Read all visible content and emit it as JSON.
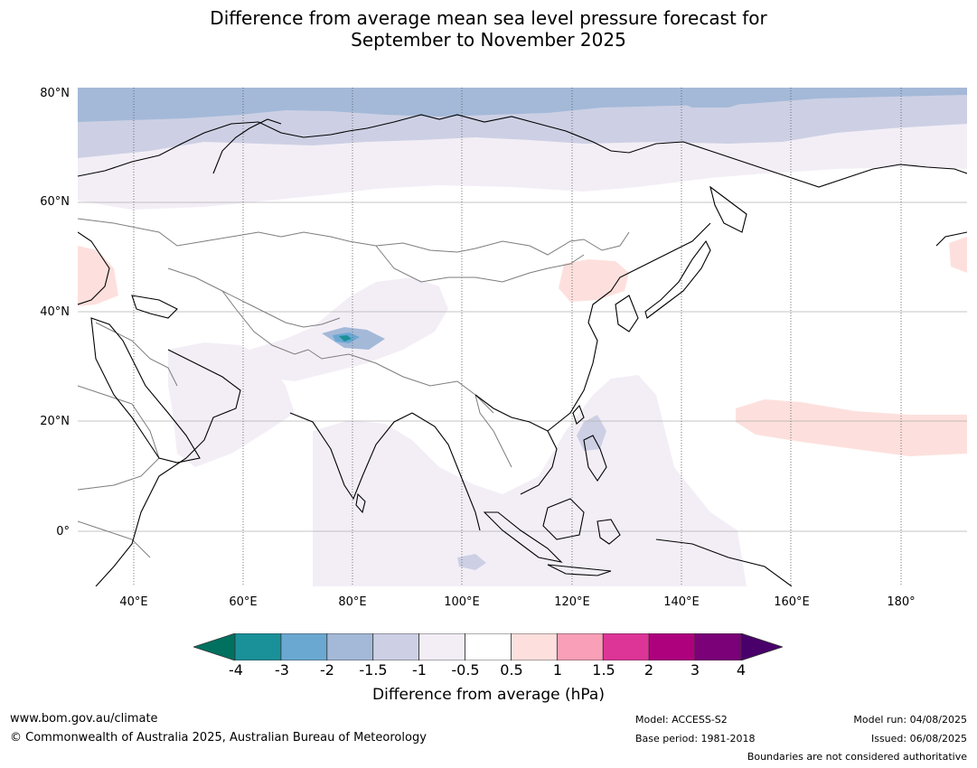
{
  "title": {
    "line1": "Difference from average mean sea level pressure forecast for",
    "line2": "September to November 2025"
  },
  "map": {
    "lat_labels": [
      "80°N",
      "60°N",
      "40°N",
      "20°N",
      "0°"
    ],
    "lon_labels": [
      "40°E",
      "60°E",
      "80°E",
      "100°E",
      "120°E",
      "140°E",
      "160°E",
      "180°"
    ],
    "extent": {
      "lon": [
        30,
        192
      ],
      "lat": [
        -10,
        81
      ]
    },
    "anomaly_regions": [
      {
        "name": "Arctic Ocean north of Russia",
        "category": "-2 to -1.5"
      },
      {
        "name": "Northern Russia / Siberia",
        "category": "-1.5 to -1"
      },
      {
        "name": "Western Siberia",
        "category": "-1 to -0.5"
      },
      {
        "name": "Tibetan Plateau / Pamir",
        "category": "-4 to -2"
      },
      {
        "name": "Indian Ocean / Maritime Continent",
        "category": "-1 to -0.5"
      },
      {
        "name": "Philippine Sea",
        "category": "-1.5 to -1"
      },
      {
        "name": "Northeast China / Mongolia",
        "category": "0.5 to 1"
      },
      {
        "name": "Eastern Europe",
        "category": "0.5 to 1"
      },
      {
        "name": "Central North Pacific",
        "category": "0.5 to 1"
      }
    ]
  },
  "colorbar": {
    "ticks": [
      "-4",
      "-3",
      "-2",
      "-1.5",
      "-1",
      "-0.5",
      "0.5",
      "1",
      "1.5",
      "2",
      "3",
      "4"
    ],
    "colors": {
      "below_-4": "#00705f",
      "-4_-3": "#1a9099",
      "-3_-2": "#6aa8d2",
      "-2_-1.5": "#a4b9d8",
      "-1.5_-1": "#cdd0e4",
      "-1_-0.5": "#f3eef6",
      "-0.5_0.5": "#ffffff",
      "0.5_1": "#fde0dd",
      "1_1.5": "#f99fb7",
      "1.5_2": "#dd3497",
      "2_3": "#ae017e",
      "3_4": "#7a0177",
      "above_4": "#49006a"
    },
    "label": "Difference from average (hPa)"
  },
  "footer": {
    "website": "www.bom.gov.au/climate",
    "copyright": "© Commonwealth of Australia 2025, Australian Bureau of Meteorology",
    "model": "Model: ACCESS-S2",
    "base_period": "Base period: 1981-2018",
    "model_run": "Model run: 04/08/2025",
    "issued": "Issued: 06/08/2025",
    "disclaimer": "Boundaries are not considered authoritative"
  }
}
